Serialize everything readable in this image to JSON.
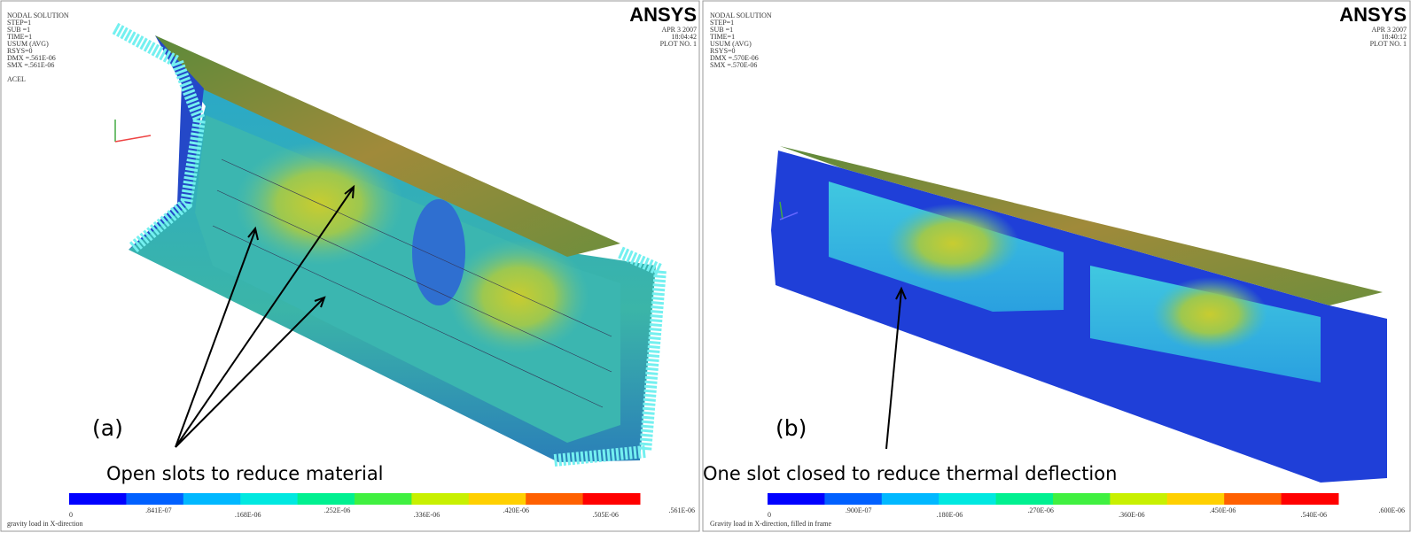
{
  "panels": [
    {
      "info_lines": [
        "NODAL SOLUTION",
        "STEP=1",
        "SUB =1",
        "TIME=1",
        "USUM      (AVG)",
        "RSYS=0",
        "DMX =.561E-06",
        "SMX =.561E-06"
      ],
      "load_label": "ACEL",
      "logo": "ANSYS",
      "date": "APR  3 2007",
      "time": "18:04:42",
      "plot_no": "PLOT NO.   1",
      "label": "(a)",
      "caption": "Open slots to reduce material",
      "colorbar_labels": [
        "0",
        ".841E-07",
        ".168E-06",
        ".252E-06",
        ".336E-06",
        ".420E-06",
        ".505E-06",
        ".561E-06"
      ],
      "footer": "gravity load in X-direction"
    },
    {
      "info_lines": [
        "NODAL SOLUTION",
        "STEP=1",
        "SUB =1",
        "TIME=1",
        "USUM      (AVG)",
        "RSYS=0",
        "DMX =.570E-06",
        "SMX =.570E-06"
      ],
      "logo": "ANSYS",
      "date": "APR  3 2007",
      "time": "18:40:12",
      "plot_no": "PLOT NO.   1",
      "label": "(b)",
      "caption": "One slot closed to reduce thermal deflection",
      "colorbar_labels": [
        "0",
        ".900E-07",
        ".180E-06",
        ".270E-06",
        ".360E-06",
        ".450E-06",
        ".540E-06",
        ".600E-06"
      ],
      "footer": "Gravity load in X-direction, filled in frame"
    }
  ]
}
